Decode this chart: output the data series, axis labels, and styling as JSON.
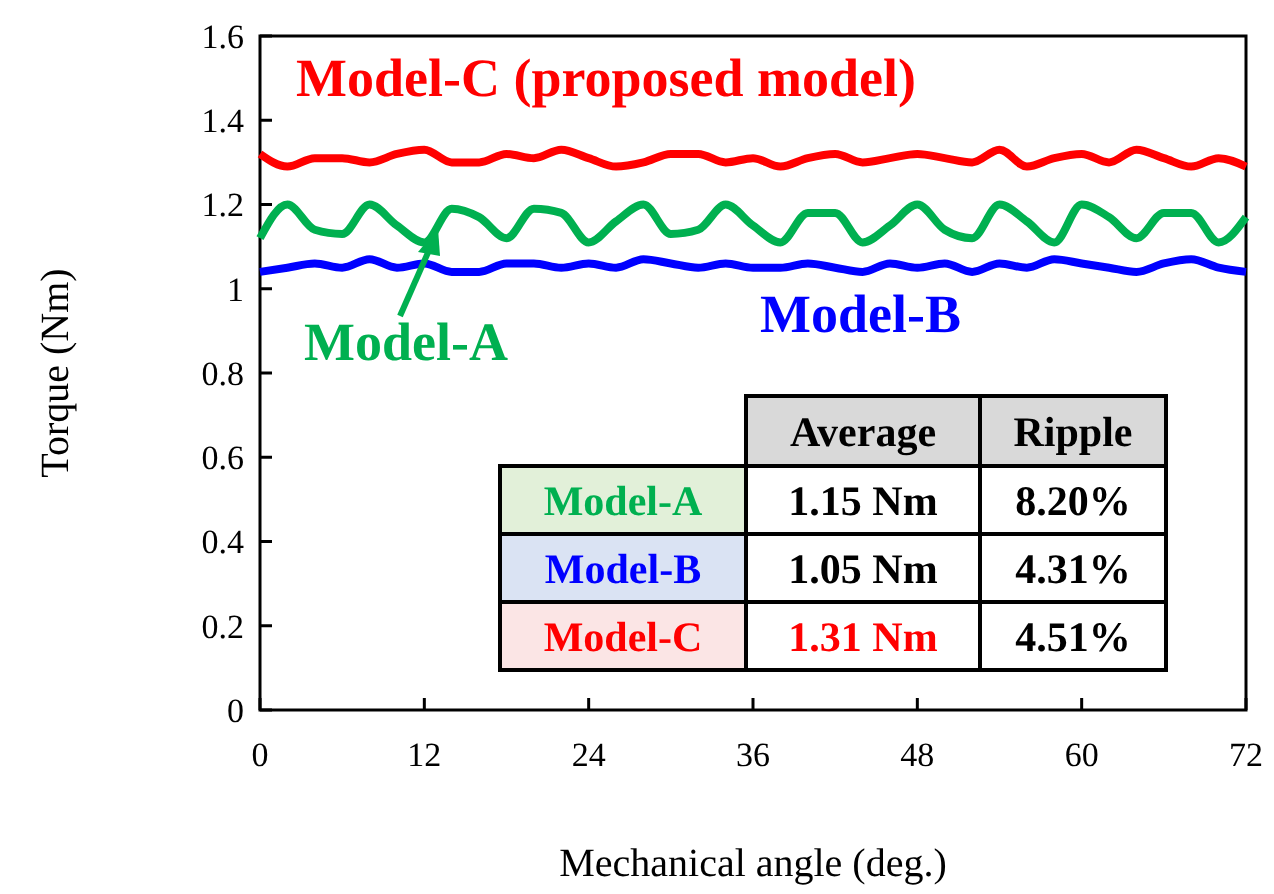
{
  "chart_data": {
    "type": "line",
    "xlabel": "Mechanical angle (deg.)",
    "ylabel": "Torque (Nm)",
    "xlim": [
      0,
      72
    ],
    "ylim": [
      0,
      1.6
    ],
    "xticks": [
      0,
      12,
      24,
      36,
      48,
      60,
      72
    ],
    "yticks": [
      0,
      0.2,
      0.4,
      0.6,
      0.8,
      1,
      1.2,
      1.4,
      1.6
    ],
    "grid": false,
    "legend": "top",
    "marker": "none",
    "line_style": "solid",
    "x": [
      0,
      2,
      4,
      6,
      8,
      10,
      12,
      14,
      16,
      18,
      20,
      22,
      24,
      26,
      28,
      30,
      32,
      34,
      36,
      38,
      40,
      42,
      44,
      46,
      48,
      50,
      52,
      54,
      56,
      58,
      60,
      62,
      64,
      66,
      68,
      70,
      72
    ],
    "series": [
      {
        "name": "Model-C (proposed model)",
        "color": "#ff0000",
        "values": [
          1.32,
          1.29,
          1.31,
          1.31,
          1.3,
          1.32,
          1.33,
          1.3,
          1.3,
          1.32,
          1.31,
          1.33,
          1.31,
          1.29,
          1.3,
          1.32,
          1.32,
          1.3,
          1.31,
          1.29,
          1.31,
          1.32,
          1.3,
          1.31,
          1.32,
          1.31,
          1.3,
          1.33,
          1.29,
          1.31,
          1.32,
          1.3,
          1.33,
          1.31,
          1.29,
          1.31,
          1.29
        ]
      },
      {
        "name": "Model-A",
        "color": "#00b050",
        "values": [
          1.12,
          1.2,
          1.14,
          1.13,
          1.2,
          1.15,
          1.11,
          1.19,
          1.17,
          1.12,
          1.19,
          1.18,
          1.11,
          1.16,
          1.2,
          1.13,
          1.14,
          1.2,
          1.15,
          1.11,
          1.18,
          1.18,
          1.11,
          1.15,
          1.2,
          1.14,
          1.12,
          1.2,
          1.16,
          1.11,
          1.2,
          1.17,
          1.12,
          1.18,
          1.18,
          1.11,
          1.17
        ]
      },
      {
        "name": "Model-B",
        "color": "#0000ff",
        "values": [
          1.04,
          1.05,
          1.06,
          1.05,
          1.07,
          1.05,
          1.06,
          1.04,
          1.04,
          1.06,
          1.06,
          1.05,
          1.06,
          1.05,
          1.07,
          1.06,
          1.05,
          1.06,
          1.05,
          1.05,
          1.06,
          1.05,
          1.04,
          1.06,
          1.05,
          1.06,
          1.04,
          1.06,
          1.05,
          1.07,
          1.06,
          1.05,
          1.04,
          1.06,
          1.07,
          1.05,
          1.04
        ]
      }
    ],
    "annotations": [
      "Average",
      "Ripple",
      "Model-A",
      "1.15 Nm",
      "8.20%",
      "Model-B",
      "1.05 Nm",
      "4.31%",
      "Model-C",
      "1.31 Nm",
      "4.51%"
    ]
  }
}
